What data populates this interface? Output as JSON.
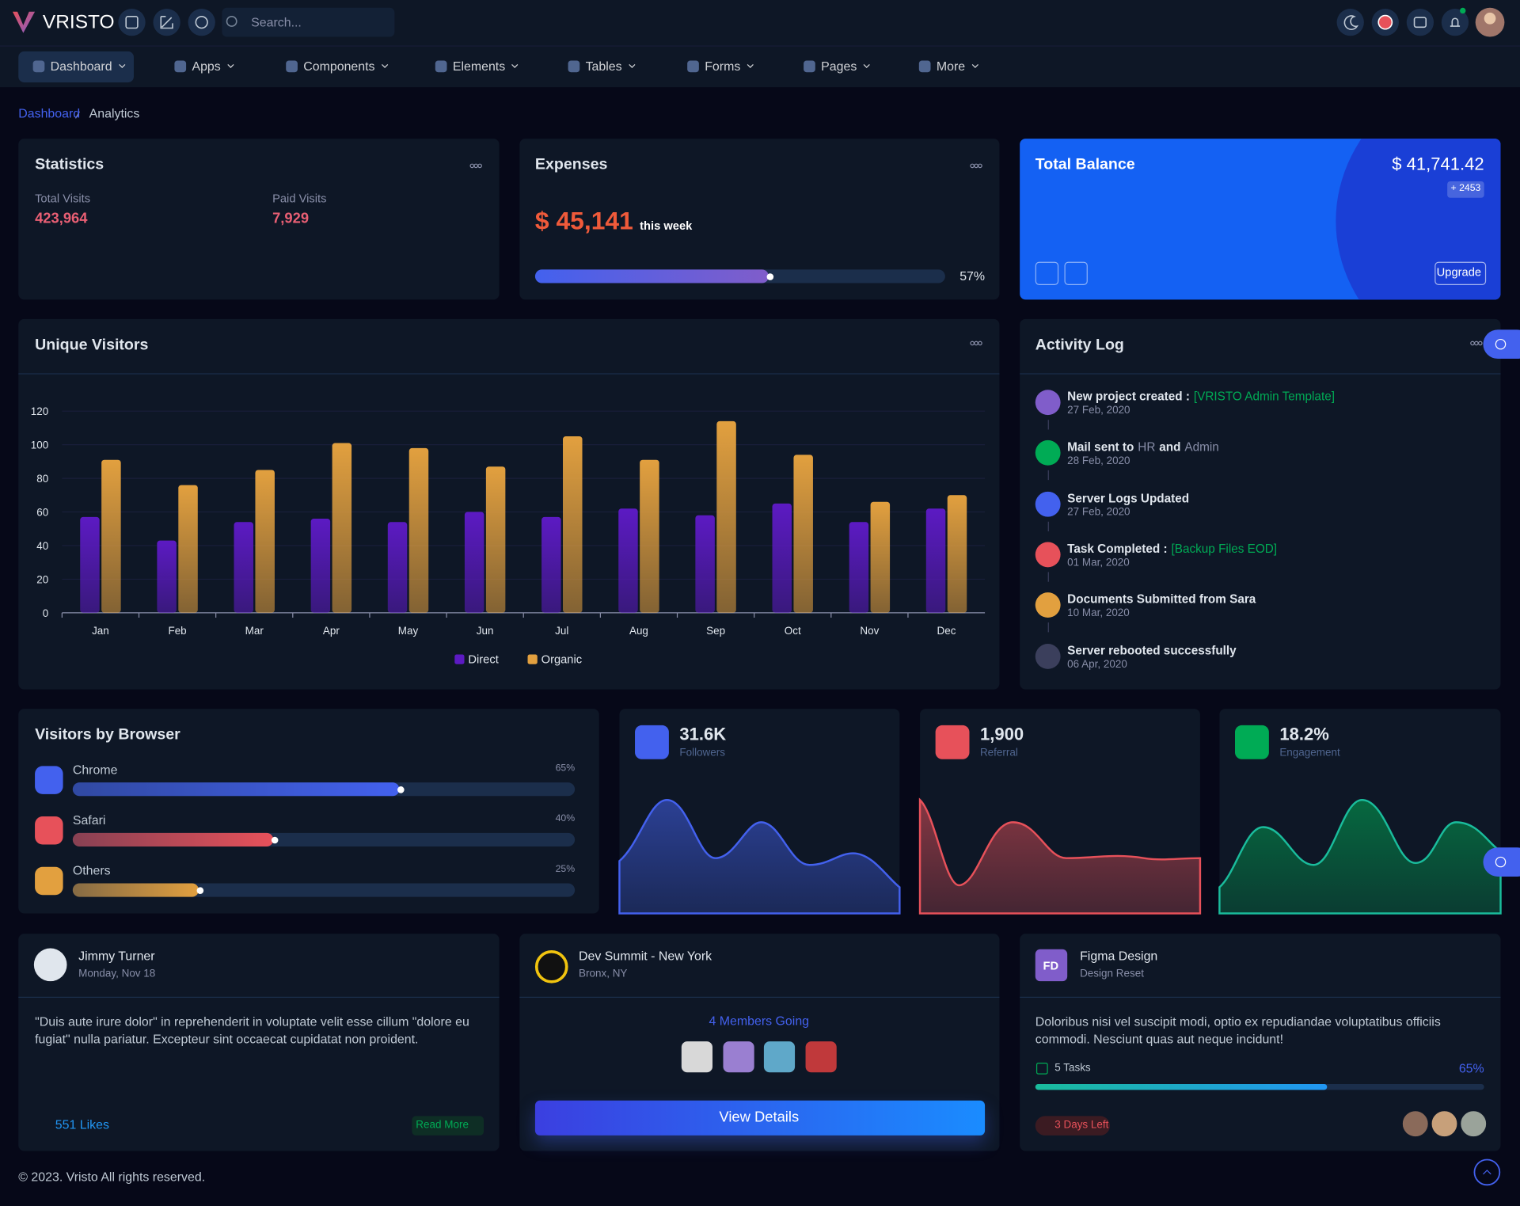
{
  "header": {
    "logo": "VRISTO",
    "search_placeholder": "Search..."
  },
  "nav": [
    "Dashboard",
    "Apps",
    "Components",
    "Elements",
    "Tables",
    "Forms",
    "Pages",
    "More"
  ],
  "breadcrumb": [
    "Dashboard",
    "Analytics"
  ],
  "statistics": {
    "title": "Statistics",
    "items": [
      {
        "label": "Total Visits",
        "value": "423,964"
      },
      {
        "label": "Paid Visits",
        "value": "7,929"
      }
    ]
  },
  "expenses": {
    "title": "Expenses",
    "amount": "$ 45,141",
    "period": "this week",
    "progress": 57,
    "progress_label": "57%"
  },
  "balance": {
    "title": "Total Balance",
    "amount": "$ 41,741.42",
    "change": "+ 2453",
    "button": "Upgrade"
  },
  "chart_data": {
    "type": "bar",
    "title": "Unique Visitors",
    "categories": [
      "Jan",
      "Feb",
      "Mar",
      "Apr",
      "May",
      "Jun",
      "Jul",
      "Aug",
      "Sep",
      "Oct",
      "Nov",
      "Dec"
    ],
    "series": [
      {
        "name": "Direct",
        "color": "#5c1ac3",
        "values": [
          57,
          43,
          54,
          56,
          54,
          60,
          57,
          62,
          58,
          65,
          54,
          62
        ]
      },
      {
        "name": "Organic",
        "color": "#e2a03f",
        "values": [
          91,
          76,
          85,
          101,
          98,
          87,
          105,
          91,
          114,
          94,
          66,
          70
        ]
      }
    ],
    "ylim": [
      0,
      120
    ],
    "yticks": [
      0,
      20,
      40,
      60,
      80,
      100,
      120
    ],
    "grid": true,
    "legend": "bottom"
  },
  "activity": {
    "title": "Activity Log",
    "items": [
      {
        "segments": [
          {
            "text": "New project created :"
          },
          {
            "text": "[VRISTO Admin Template]",
            "color": "#00ab55"
          }
        ],
        "date": "27 Feb, 2020",
        "color": "#805dca"
      },
      {
        "segments": [
          {
            "text": "Mail sent to"
          },
          {
            "text": "HR",
            "color": "#888ea8"
          },
          {
            "text": "and"
          },
          {
            "text": "Admin",
            "color": "#888ea8"
          }
        ],
        "date": "28 Feb, 2020",
        "color": "#00ab55"
      },
      {
        "segments": [
          {
            "text": "Server Logs Updated"
          }
        ],
        "date": "27 Feb, 2020",
        "color": "#4361ee"
      },
      {
        "segments": [
          {
            "text": "Task Completed :"
          },
          {
            "text": "[Backup Files EOD]",
            "color": "#00ab55"
          }
        ],
        "date": "01 Mar, 2020",
        "color": "#e7515a"
      },
      {
        "segments": [
          {
            "text": "Documents Submitted from Sara"
          }
        ],
        "date": "10 Mar, 2020",
        "color": "#e2a03f"
      },
      {
        "segments": [
          {
            "text": "Server rebooted successfully"
          }
        ],
        "date": "06 Apr, 2020",
        "color": "#3b3f5c"
      }
    ]
  },
  "browsers": {
    "title": "Visitors by Browser",
    "items": [
      {
        "name": "Chrome",
        "value": 65,
        "value_label": "65%",
        "color": "#4361ee"
      },
      {
        "name": "Safari",
        "value": 40,
        "value_label": "40%",
        "color": "#e7515a"
      },
      {
        "name": "Others",
        "value": 25,
        "value_label": "25%",
        "color": "#e2a03f"
      }
    ]
  },
  "summary": [
    {
      "value": "31.6K",
      "label": "Followers",
      "color": "#4361ee"
    },
    {
      "value": "1,900",
      "label": "Referral",
      "color": "#e7515a"
    },
    {
      "value": "18.2%",
      "label": "Engagement",
      "color": "#00ab55"
    }
  ],
  "post": {
    "name": "Jimmy Turner",
    "date": "Monday, Nov 18",
    "text": "\"Duis aute irure dolor\" in reprehenderit in voluptate velit esse cillum \"dolore eu fugiat\" nulla pariatur. Excepteur sint occaecat cupidatat non proident.",
    "likes": "551 Likes",
    "button": "Read More"
  },
  "event": {
    "title": "Dev Summit - New York",
    "location": "Bronx, NY",
    "members": "4 Members Going",
    "button": "View Details"
  },
  "project": {
    "initials": "FD",
    "title": "Figma Design",
    "subtitle": "Design Reset",
    "text": "Doloribus nisi vel suscipit modi, optio ex repudiandae voluptatibus officiis commodi. Nesciunt quas aut neque incidunt!",
    "tasks": "5 Tasks",
    "progress": 65,
    "progress_label": "65%",
    "deadline": "3 Days Left"
  },
  "footer": "© 2023. Vristo All rights reserved."
}
